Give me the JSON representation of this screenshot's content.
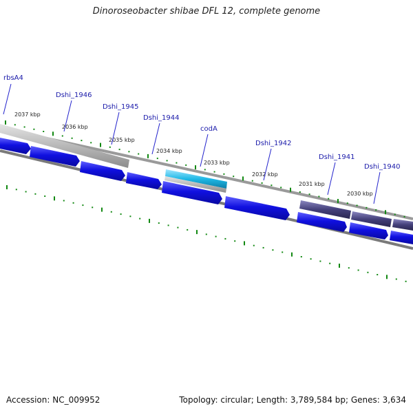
{
  "title": "Dinoroseobacter shibae DFL 12, complete genome",
  "footer": {
    "accession": "Accession: NC_009952",
    "summary": "Topology: circular; Length: 3,789,584 bp; Genes: 3,634"
  },
  "colors": {
    "backbone": "#7a7a7a",
    "cds_blue": "#1010e0",
    "rrna_grey": "#b4b4b4",
    "highlight_cyan": "#1fb8e6",
    "purple_gene": "#44407a",
    "tick_green": "#118811",
    "label_line": "#2222cc"
  },
  "scale_labels": [
    "2037 kbp",
    "2036 kbp",
    "2035 kbp",
    "2034 kbp",
    "2033 kbp",
    "2032 kbp",
    "2031 kbp",
    "2030 kbp"
  ],
  "gene_labels": [
    "rbsA4",
    "Dshi_1946",
    "Dshi_1945",
    "Dshi_1944",
    "codA",
    "Dshi_1942",
    "Dshi_1941",
    "Dshi_1940"
  ]
}
